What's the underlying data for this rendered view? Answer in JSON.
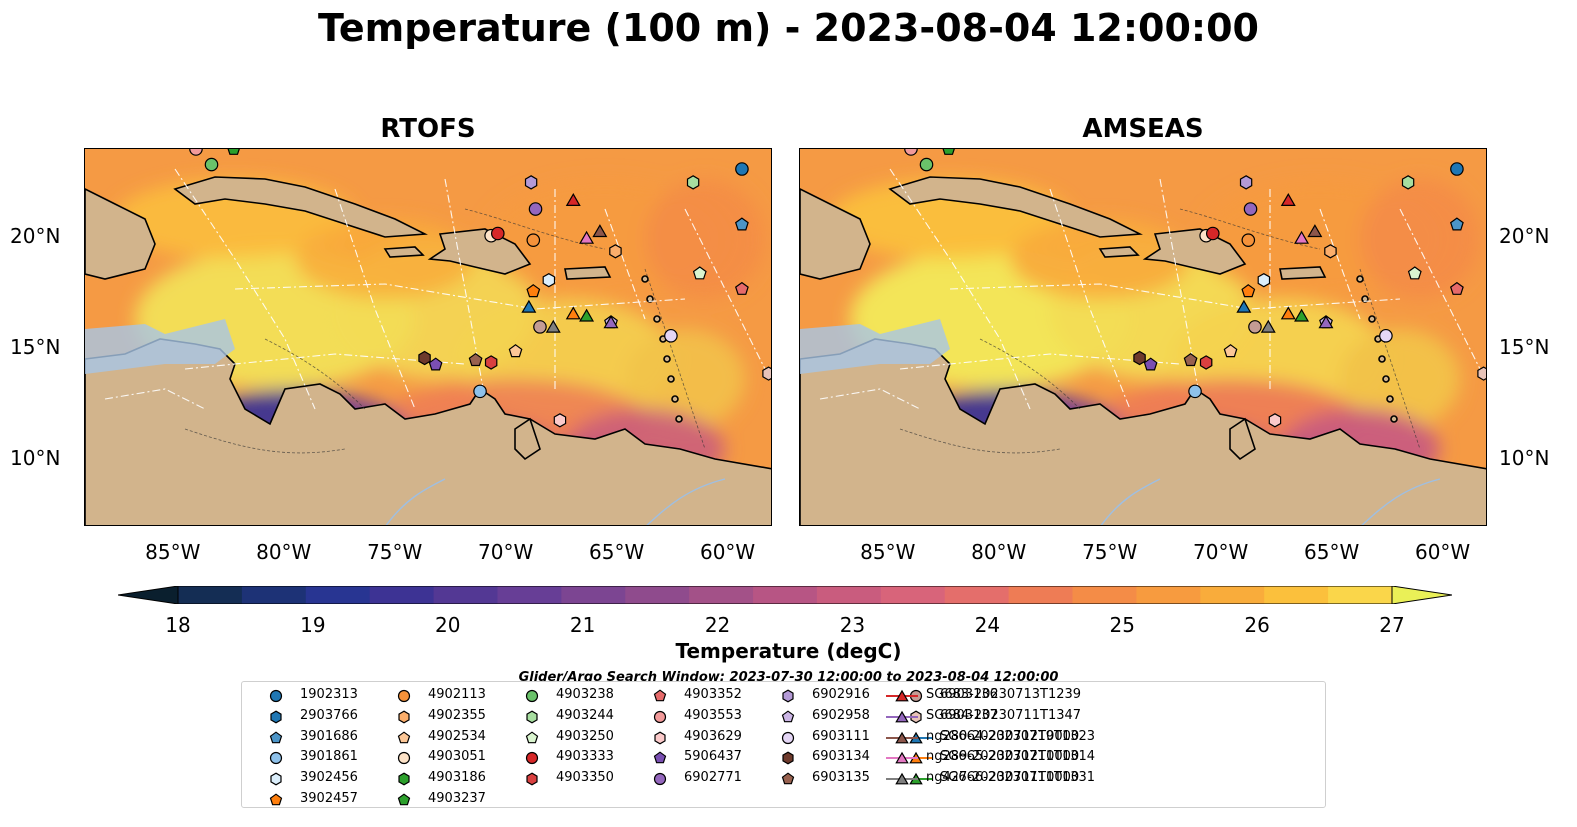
{
  "title": "Temperature (100 m) - 2023-08-04 12:00:00",
  "panels": [
    {
      "name": "RTOFS"
    },
    {
      "name": "AMSEAS"
    }
  ],
  "lon_ticks": [
    "85°W",
    "80°W",
    "75°W",
    "70°W",
    "65°W",
    "60°W"
  ],
  "lat_ticks": [
    "20°N",
    "15°N",
    "10°N"
  ],
  "lon_values": [
    -85,
    -80,
    -75,
    -70,
    -65,
    -60
  ],
  "lat_values": [
    20,
    15,
    10
  ],
  "extent": {
    "lon": [
      -89,
      -58
    ],
    "lat": [
      7,
      24
    ]
  },
  "colorbar": {
    "label": "Temperature (degC)",
    "ticks": [
      "18",
      "19",
      "20",
      "21",
      "22",
      "23",
      "24",
      "25",
      "26",
      "27"
    ],
    "range": [
      18,
      27
    ],
    "colors": [
      "#0a1f2e",
      "#142d54",
      "#1d3276",
      "#283592",
      "#3d3394",
      "#533894",
      "#673e96",
      "#7c4592",
      "#8f4b8d",
      "#a35188",
      "#b75584",
      "#c95c7e",
      "#d8647a",
      "#e46e6b",
      "#ee7c55",
      "#f48c47",
      "#f79b3f",
      "#f9ac3b",
      "#fbc03c",
      "#fad64a",
      "#eaf057"
    ],
    "extend": "both"
  },
  "search_window": "Glider/Argo Search Window: 2023-07-30 12:00:00 to 2023-08-04 12:00:00",
  "legend": [
    {
      "label": "1902313",
      "marker": "circle",
      "color": "#1f77b4",
      "edge": "#000"
    },
    {
      "label": "2903766",
      "marker": "hexagon",
      "color": "#1f77b4",
      "edge": "#000"
    },
    {
      "label": "3901686",
      "marker": "pentagon",
      "color": "#4c95c8",
      "edge": "#000"
    },
    {
      "label": "3901861",
      "marker": "circle",
      "color": "#8ec1ea",
      "edge": "#000"
    },
    {
      "label": "3902456",
      "marker": "hexagon",
      "color": "#dbeefb",
      "edge": "#000"
    },
    {
      "label": "3902457",
      "marker": "pentagon",
      "color": "#ff7f0e",
      "edge": "#000"
    },
    {
      "label": "4902113",
      "marker": "circle",
      "color": "#f5923a",
      "edge": "#000"
    },
    {
      "label": "4902355",
      "marker": "hexagon",
      "color": "#fbae6b",
      "edge": "#000"
    },
    {
      "label": "4902534",
      "marker": "pentagon",
      "color": "#fcc797",
      "edge": "#000"
    },
    {
      "label": "4903051",
      "marker": "circle",
      "color": "#fde3c8",
      "edge": "#000"
    },
    {
      "label": "4903186",
      "marker": "hexagon",
      "color": "#2ca02c",
      "edge": "#000"
    },
    {
      "label": "4903237",
      "marker": "pentagon",
      "color": "#2ca02c",
      "edge": "#000"
    },
    {
      "label": "4903238",
      "marker": "circle",
      "color": "#6ac26a",
      "edge": "#000"
    },
    {
      "label": "4903244",
      "marker": "hexagon",
      "color": "#a7dea0",
      "edge": "#000"
    },
    {
      "label": "4903250",
      "marker": "pentagon",
      "color": "#daf5cf",
      "edge": "#000"
    },
    {
      "label": "4903333",
      "marker": "circle",
      "color": "#d62728",
      "edge": "#000"
    },
    {
      "label": "4903350",
      "marker": "hexagon",
      "color": "#d94040",
      "edge": "#000"
    },
    {
      "label": "4903352",
      "marker": "pentagon",
      "color": "#e66a6a",
      "edge": "#000"
    },
    {
      "label": "4903553",
      "marker": "circle",
      "color": "#f29a9a",
      "edge": "#000"
    },
    {
      "label": "4903629",
      "marker": "hexagon",
      "color": "#fbcaca",
      "edge": "#000"
    },
    {
      "label": "5906437",
      "marker": "pentagon",
      "color": "#7a4fb2",
      "edge": "#000"
    },
    {
      "label": "6902771",
      "marker": "circle",
      "color": "#9467bd",
      "edge": "#000"
    },
    {
      "label": "6902916",
      "marker": "hexagon",
      "color": "#b49ad6",
      "edge": "#000"
    },
    {
      "label": "6902958",
      "marker": "pentagon",
      "color": "#ccb6e6",
      "edge": "#000"
    },
    {
      "label": "6903111",
      "marker": "circle",
      "color": "#e4d6f5",
      "edge": "#000"
    },
    {
      "label": "6903134",
      "marker": "hexagon",
      "color": "#6e3a2c",
      "edge": "#000"
    },
    {
      "label": "6903135",
      "marker": "pentagon",
      "color": "#98614f",
      "edge": "#000"
    },
    {
      "label": "6903136",
      "marker": "circle",
      "color": "#c49c94",
      "edge": "#000"
    },
    {
      "label": "6903137",
      "marker": "hexagon",
      "color": "#e8c3b8",
      "edge": "#000"
    },
    {
      "label": "SG664-20230719T1323",
      "marker": "triangle",
      "color": "#1f77b4",
      "edge": "#000",
      "line": true
    },
    {
      "label": "SG665-20230711T1314",
      "marker": "triangle",
      "color": "#ff7f0e",
      "edge": "#000",
      "line": true
    },
    {
      "label": "SG666-20230711T1331",
      "marker": "triangle",
      "color": "#2ca02c",
      "edge": "#000",
      "line": true
    },
    {
      "label": "SG683-20230713T1239",
      "marker": "triangle",
      "color": "#d62728",
      "edge": "#000",
      "line": true
    },
    {
      "label": "SG684-20230711T1347",
      "marker": "triangle",
      "color": "#9467bd",
      "edge": "#000",
      "line": true
    },
    {
      "label": "ng280-20230712T0000",
      "marker": "triangle",
      "color": "#8c564b",
      "edge": "#000",
      "line": true
    },
    {
      "label": "ng289-20230712T0000",
      "marker": "triangle",
      "color": "#e377c2",
      "edge": "#000",
      "line": true
    },
    {
      "label": "ng427-20230711T0000",
      "marker": "triangle",
      "color": "#7f7f7f",
      "edge": "#000",
      "line": true
    }
  ],
  "platform_positions": [
    {
      "id": "1902313",
      "lon": -59.4,
      "lat": 23.1
    },
    {
      "id": "3901686",
      "lon": -59.4,
      "lat": 20.6
    },
    {
      "id": "3901861",
      "lon": -71.2,
      "lat": 13.1
    },
    {
      "id": "3902456",
      "lon": -68.1,
      "lat": 18.1
    },
    {
      "id": "3902457",
      "lon": -68.8,
      "lat": 17.6
    },
    {
      "id": "4902113",
      "lon": -68.8,
      "lat": 19.9
    },
    {
      "id": "4902355",
      "lon": -65.1,
      "lat": 19.4
    },
    {
      "id": "4902534",
      "lon": -69.6,
      "lat": 14.9
    },
    {
      "id": "4903051",
      "lon": -70.7,
      "lat": 20.1
    },
    {
      "id": "4903237",
      "lon": -82.3,
      "lat": 24.0
    },
    {
      "id": "4903238",
      "lon": -83.3,
      "lat": 23.3
    },
    {
      "id": "4903244",
      "lon": -61.6,
      "lat": 22.5
    },
    {
      "id": "4903250",
      "lon": -61.3,
      "lat": 18.4
    },
    {
      "id": "4903333",
      "lon": -70.4,
      "lat": 20.2
    },
    {
      "id": "4903350",
      "lon": -70.7,
      "lat": 14.4
    },
    {
      "id": "4903352",
      "lon": -59.4,
      "lat": 17.7
    },
    {
      "id": "4903553",
      "lon": -84.0,
      "lat": 24.0
    },
    {
      "id": "4903629",
      "lon": -67.6,
      "lat": 11.8
    },
    {
      "id": "5906437",
      "lon": -73.2,
      "lat": 14.3
    },
    {
      "id": "6902771",
      "lon": -68.7,
      "lat": 21.3
    },
    {
      "id": "6902916",
      "lon": -68.9,
      "lat": 22.5
    },
    {
      "id": "6902958",
      "lon": -65.3,
      "lat": 16.2
    },
    {
      "id": "6903111",
      "lon": -62.6,
      "lat": 15.6
    },
    {
      "id": "6903134",
      "lon": -73.7,
      "lat": 14.6
    },
    {
      "id": "6903135",
      "lon": -71.4,
      "lat": 14.5
    },
    {
      "id": "6903136",
      "lon": -68.5,
      "lat": 16.0
    },
    {
      "id": "6903137",
      "lon": -58.2,
      "lat": 13.9
    },
    {
      "id": "SG664-20230719T1323",
      "lon": -69.0,
      "lat": 16.9
    },
    {
      "id": "SG665-20230711T1314",
      "lon": -67.0,
      "lat": 16.6
    },
    {
      "id": "SG666-20230711T1331",
      "lon": -66.4,
      "lat": 16.5
    },
    {
      "id": "SG683-20230713T1239",
      "lon": -67.0,
      "lat": 21.7
    },
    {
      "id": "SG684-20230711T1347",
      "lon": -65.3,
      "lat": 16.2
    },
    {
      "id": "ng280-20230712T0000",
      "lon": -65.8,
      "lat": 20.3
    },
    {
      "id": "ng289-20230712T0000",
      "lon": -66.4,
      "lat": 20.0
    },
    {
      "id": "ng427-20230711T0000",
      "lon": -67.9,
      "lat": 16.0
    }
  ]
}
